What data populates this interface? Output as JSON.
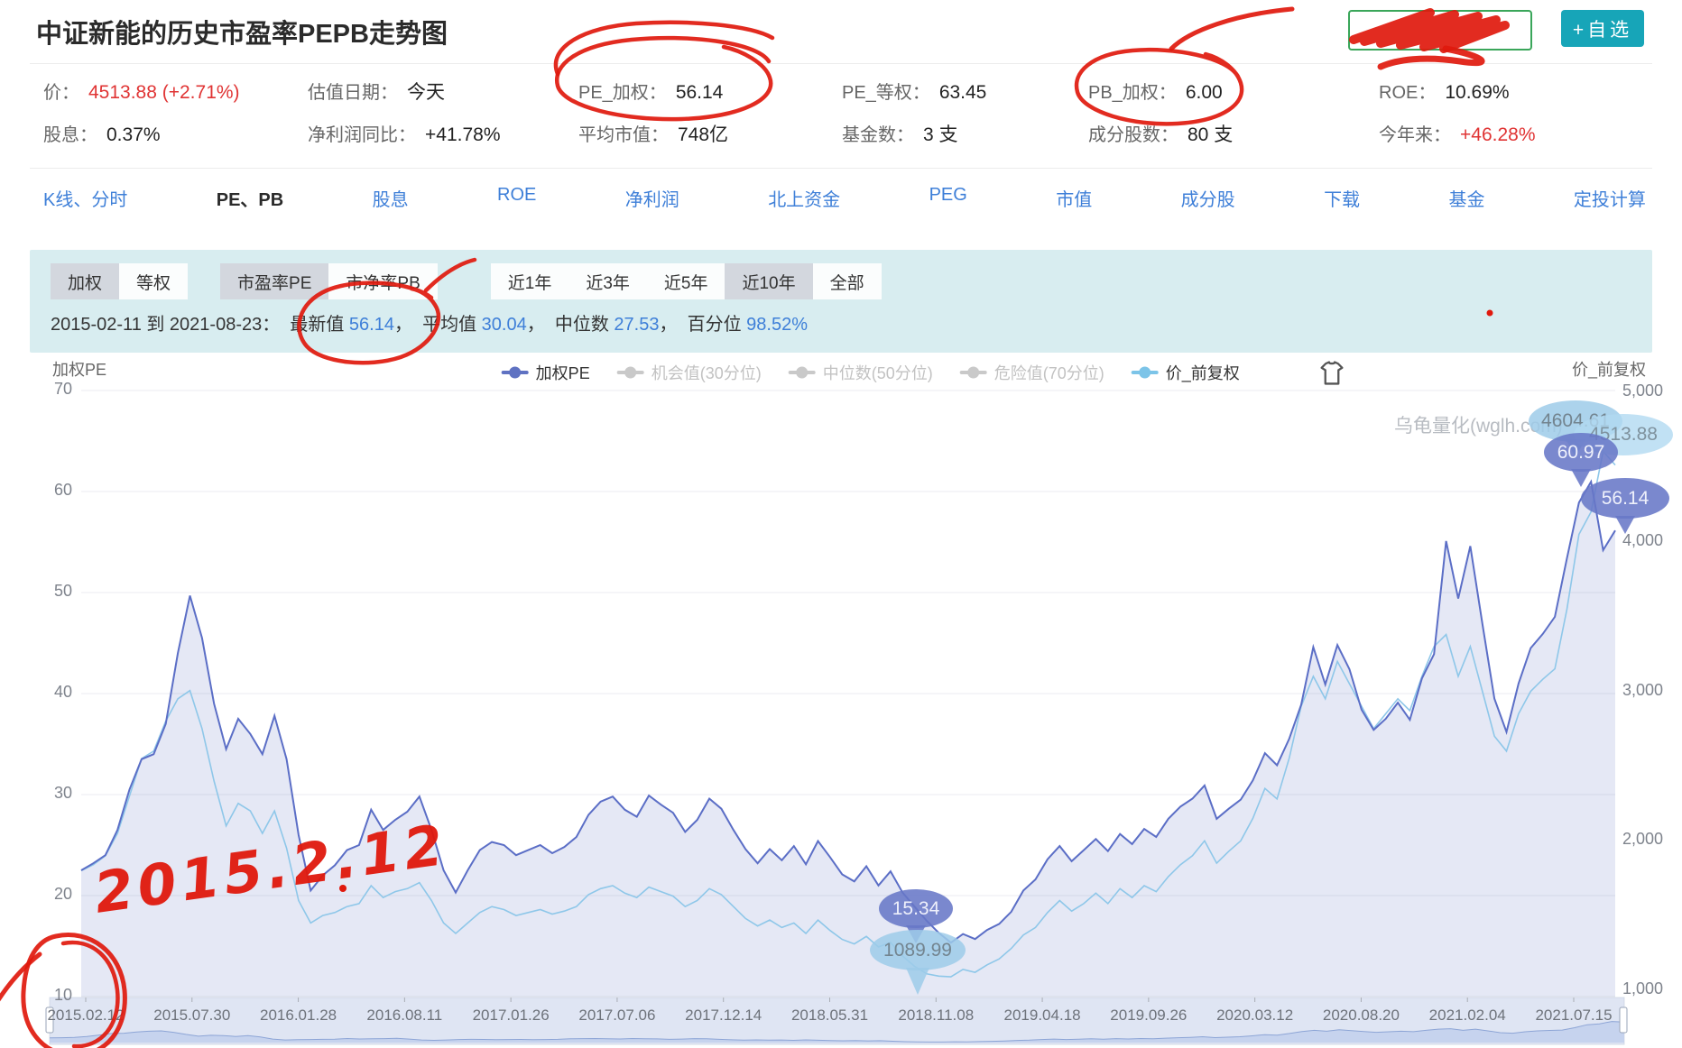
{
  "page_title": "中证新能的历史市盈率PEPB走势图",
  "header": {
    "watchlist_button": "+自选",
    "stats": [
      [
        {
          "label": "价：",
          "value": "4513.88 (+2.71%)",
          "red": true
        },
        {
          "label": "估值日期：",
          "value": "今天"
        },
        {
          "label": "PE_加权：",
          "value": "56.14"
        },
        {
          "label": "PE_等权：",
          "value": "63.45"
        },
        {
          "label": "PB_加权：",
          "value": "6.00"
        },
        {
          "label": "ROE：",
          "value": "10.69%"
        }
      ],
      [
        {
          "label": "股息：",
          "value": "0.37%"
        },
        {
          "label": "净利润同比：",
          "value": "+41.78%"
        },
        {
          "label": "平均市值：",
          "value": "748亿"
        },
        {
          "label": "基金数：",
          "value": "3 支"
        },
        {
          "label": "成分股数：",
          "value": "80 支"
        },
        {
          "label": "今年来：",
          "value": "+46.28%",
          "red": true
        }
      ]
    ]
  },
  "nav_tabs": [
    {
      "label": "K线、分时",
      "active": false
    },
    {
      "label": "PE、PB",
      "active": true
    },
    {
      "label": "股息",
      "active": false
    },
    {
      "label": "ROE",
      "active": false
    },
    {
      "label": "净利润",
      "active": false
    },
    {
      "label": "北上资金",
      "active": false
    },
    {
      "label": "PEG",
      "active": false
    },
    {
      "label": "市值",
      "active": false
    },
    {
      "label": "成分股",
      "active": false
    },
    {
      "label": "下载",
      "active": false
    },
    {
      "label": "基金",
      "active": false
    },
    {
      "label": "定投计算",
      "active": false
    }
  ],
  "filters": {
    "groups": [
      {
        "name": "weight-mode",
        "buttons": [
          {
            "label": "加权",
            "selected": true
          },
          {
            "label": "等权",
            "selected": false
          }
        ]
      },
      {
        "name": "metric",
        "buttons": [
          {
            "label": "市盈率PE",
            "selected": true
          },
          {
            "label": "市净率PB",
            "selected": false
          }
        ]
      },
      {
        "name": "range",
        "buttons": [
          {
            "label": "近1年",
            "selected": false
          },
          {
            "label": "近3年",
            "selected": false
          },
          {
            "label": "近5年",
            "selected": false
          },
          {
            "label": "近10年",
            "selected": true
          },
          {
            "label": "全部",
            "selected": false
          }
        ]
      }
    ]
  },
  "range_summary": {
    "parts": [
      {
        "text": "2015-02-11 到 2021-08-23：  ",
        "style": "dark"
      },
      {
        "text": "最新值 ",
        "style": "dark"
      },
      {
        "text": "56.14",
        "style": "blue"
      },
      {
        "text": "，  ",
        "style": "dark"
      },
      {
        "text": "平均值 ",
        "style": "dark"
      },
      {
        "text": "30.04",
        "style": "blue"
      },
      {
        "text": "，  ",
        "style": "dark"
      },
      {
        "text": "中位数 ",
        "style": "dark"
      },
      {
        "text": "27.53",
        "style": "blue"
      },
      {
        "text": "，  ",
        "style": "dark"
      },
      {
        "text": "百分位 ",
        "style": "dark"
      },
      {
        "text": "98.52%",
        "style": "blue"
      }
    ]
  },
  "chart": {
    "left_axis_title": "加权PE",
    "right_axis_title": "价_前复权",
    "watermark": "乌龟量化(wglh.com)",
    "legend": [
      {
        "label": "加权PE",
        "color": "#5f72c2",
        "active": true
      },
      {
        "label": "机会值(30分位)",
        "color": "#c9c9c9",
        "active": false
      },
      {
        "label": "中位数(50分位)",
        "color": "#c9c9c9",
        "active": false
      },
      {
        "label": "危险值(70分位)",
        "color": "#c9c9c9",
        "active": false
      },
      {
        "label": "价_前复权",
        "color": "#7cc4e8",
        "active": true
      }
    ]
  },
  "chart_data": {
    "type": "line",
    "x_start": "2015-02-11",
    "x_end": "2021-08-23",
    "x_tick_labels": [
      "2015.02.12",
      "2015.07.30",
      "2016.01.28",
      "2016.08.11",
      "2017.01.26",
      "2017.07.06",
      "2017.12.14",
      "2018.05.31",
      "2018.11.08",
      "2019.04.18",
      "2019.09.26",
      "2020.03.12",
      "2020.08.20",
      "2021.02.04",
      "2021.07.15"
    ],
    "left_axis": {
      "label": "加权PE",
      "min": 10,
      "max": 70,
      "ticks": [
        70,
        60,
        50,
        40,
        30,
        20,
        10
      ]
    },
    "right_axis": {
      "label": "价_前复权",
      "min": 1000,
      "max": 5000,
      "ticks": [
        {
          "label": "5,000",
          "value": 5000
        },
        {
          "label": "4,000",
          "value": 4000
        },
        {
          "label": "3,000",
          "value": 3000
        },
        {
          "label": "2,000",
          "value": 2000
        },
        {
          "label": "1,000",
          "value": 1000
        }
      ]
    },
    "series": [
      {
        "name": "加权PE",
        "axis": "left",
        "color": "#5b6ec6",
        "fill": "rgba(112,128,200,0.18)"
      },
      {
        "name": "价_前复权",
        "axis": "right",
        "color": "#8ec7e9"
      }
    ],
    "callouts": {
      "pe_max": "60.97",
      "pe_current": "56.14",
      "pe_min": "15.34",
      "price_max": "4604.61",
      "price_current": "4513.88",
      "price_min": "1089.99"
    },
    "points": [
      [
        22.5,
        1800
      ],
      [
        23.2,
        1840
      ],
      [
        24,
        1900
      ],
      [
        26.5,
        2050
      ],
      [
        30.5,
        2300
      ],
      [
        33.5,
        2550
      ],
      [
        34,
        2600
      ],
      [
        37,
        2800
      ],
      [
        44,
        2950
      ],
      [
        49.7,
        3005
      ],
      [
        45.5,
        2750
      ],
      [
        39,
        2400
      ],
      [
        34.5,
        2100
      ],
      [
        37.5,
        2250
      ],
      [
        36,
        2200
      ],
      [
        34,
        2050
      ],
      [
        37.8,
        2200
      ],
      [
        33.5,
        1950
      ],
      [
        26,
        1600
      ],
      [
        20.5,
        1450
      ],
      [
        22,
        1500
      ],
      [
        23,
        1520
      ],
      [
        24.5,
        1560
      ],
      [
        25,
        1580
      ],
      [
        28.5,
        1700
      ],
      [
        26.5,
        1620
      ],
      [
        27.5,
        1660
      ],
      [
        28.3,
        1680
      ],
      [
        29.8,
        1720
      ],
      [
        26.5,
        1600
      ],
      [
        22.5,
        1450
      ],
      [
        20.3,
        1380
      ],
      [
        22.5,
        1450
      ],
      [
        24.5,
        1520
      ],
      [
        25.3,
        1560
      ],
      [
        25,
        1540
      ],
      [
        24,
        1500
      ],
      [
        24.5,
        1520
      ],
      [
        25,
        1540
      ],
      [
        24.2,
        1510
      ],
      [
        24.8,
        1530
      ],
      [
        25.8,
        1560
      ],
      [
        28,
        1640
      ],
      [
        29.3,
        1680
      ],
      [
        29.8,
        1700
      ],
      [
        28.5,
        1650
      ],
      [
        27.8,
        1620
      ],
      [
        29.9,
        1690
      ],
      [
        29,
        1660
      ],
      [
        28.2,
        1630
      ],
      [
        26.3,
        1560
      ],
      [
        27.5,
        1600
      ],
      [
        29.6,
        1680
      ],
      [
        28.6,
        1640
      ],
      [
        26.5,
        1560
      ],
      [
        24.6,
        1480
      ],
      [
        23.2,
        1430
      ],
      [
        24.6,
        1470
      ],
      [
        23.5,
        1420
      ],
      [
        24.9,
        1450
      ],
      [
        23.1,
        1380
      ],
      [
        25.4,
        1470
      ],
      [
        23.8,
        1400
      ],
      [
        22.1,
        1340
      ],
      [
        21.4,
        1310
      ],
      [
        22.9,
        1360
      ],
      [
        21,
        1290
      ],
      [
        22.4,
        1320
      ],
      [
        20.3,
        1230
      ],
      [
        18.9,
        1160
      ],
      [
        17.5,
        1110
      ],
      [
        16.3,
        1095
      ],
      [
        15.34,
        1089.99
      ],
      [
        16.2,
        1140
      ],
      [
        15.7,
        1120
      ],
      [
        16.6,
        1170
      ],
      [
        17.2,
        1210
      ],
      [
        18.4,
        1280
      ],
      [
        20.5,
        1370
      ],
      [
        21.6,
        1420
      ],
      [
        23.6,
        1520
      ],
      [
        24.9,
        1600
      ],
      [
        23.4,
        1530
      ],
      [
        24.5,
        1580
      ],
      [
        25.6,
        1650
      ],
      [
        24.4,
        1580
      ],
      [
        26.1,
        1680
      ],
      [
        25.1,
        1620
      ],
      [
        26.6,
        1700
      ],
      [
        25.8,
        1660
      ],
      [
        27.6,
        1760
      ],
      [
        28.8,
        1840
      ],
      [
        29.6,
        1900
      ],
      [
        30.9,
        2000
      ],
      [
        27.6,
        1850
      ],
      [
        28.6,
        1930
      ],
      [
        29.5,
        2000
      ],
      [
        31.4,
        2150
      ],
      [
        34.1,
        2350
      ],
      [
        32.9,
        2280
      ],
      [
        35.5,
        2550
      ],
      [
        38.9,
        2900
      ],
      [
        44.6,
        3100
      ],
      [
        40.9,
        2950
      ],
      [
        44.8,
        3200
      ],
      [
        42.4,
        3050
      ],
      [
        38.4,
        2900
      ],
      [
        36.4,
        2750
      ],
      [
        37.5,
        2850
      ],
      [
        39.1,
        2950
      ],
      [
        37.4,
        2870
      ],
      [
        41.5,
        3100
      ],
      [
        43.9,
        3300
      ],
      [
        55.1,
        3380
      ],
      [
        49.4,
        3100
      ],
      [
        54.6,
        3300
      ],
      [
        46.9,
        3000
      ],
      [
        39.5,
        2700
      ],
      [
        36.2,
        2600
      ],
      [
        41,
        2850
      ],
      [
        44.5,
        3000
      ],
      [
        45.9,
        3080
      ],
      [
        47.6,
        3150
      ],
      [
        53.4,
        3550
      ],
      [
        58.9,
        4050
      ],
      [
        60.97,
        4200
      ],
      [
        54.2,
        4604.61
      ],
      [
        56.14,
        4513.88
      ]
    ]
  },
  "annotations": {
    "handwriting": "2015.2.12"
  }
}
